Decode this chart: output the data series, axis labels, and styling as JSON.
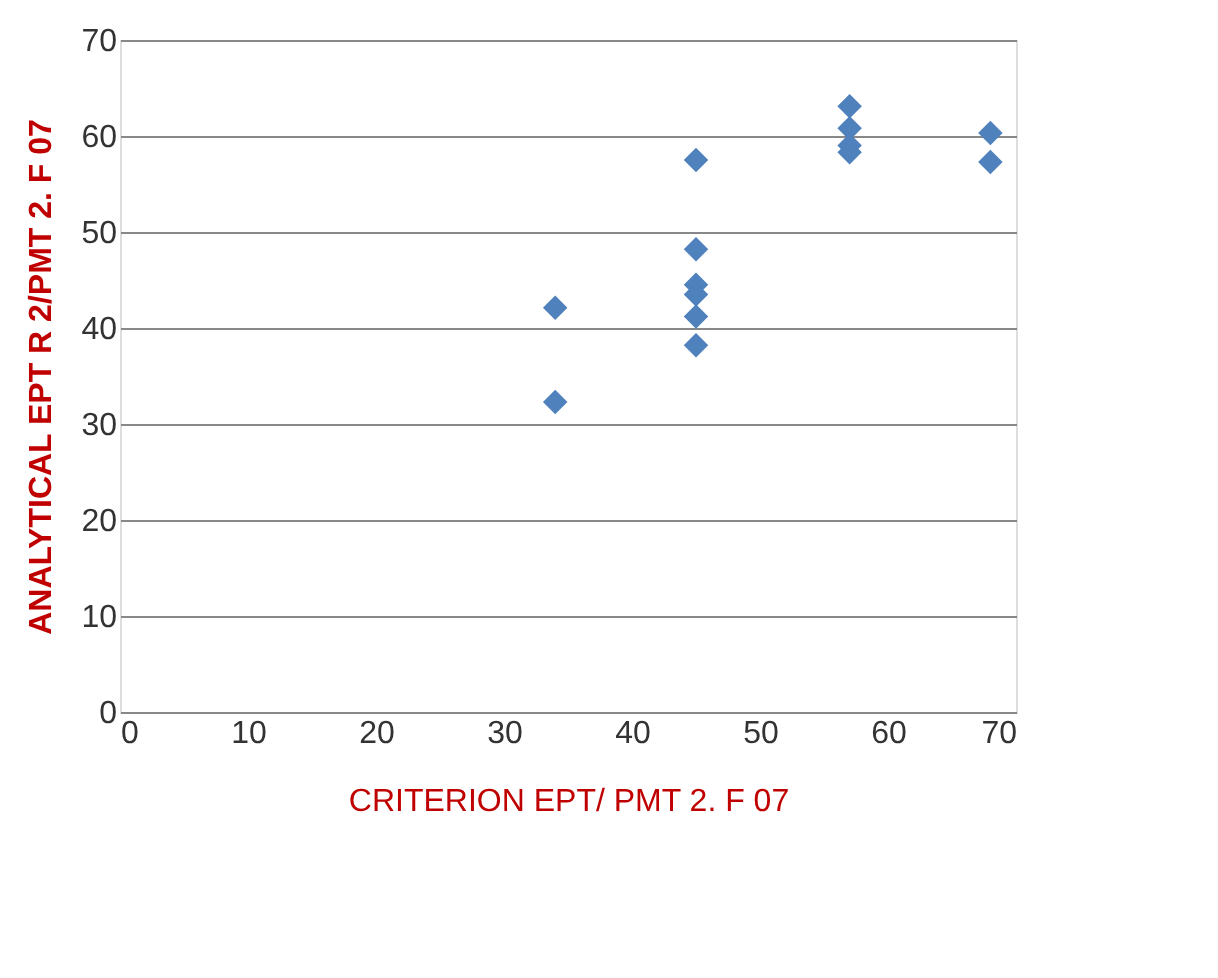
{
  "chart_data": {
    "type": "scatter",
    "xlabel": "CRITERION EPT/ PMT 2. F 07",
    "ylabel": "ANALYTICAL EPT R 2/PMT 2. F 07",
    "series": [
      {
        "color": "#4f81bd",
        "x": [
          34,
          34,
          45,
          45,
          45,
          45,
          45,
          45,
          57,
          57,
          57,
          57,
          68,
          68
        ],
        "values": [
          42.1,
          32.3,
          57.5,
          48.2,
          44.5,
          43.5,
          41.2,
          38.2,
          63.1,
          60.8,
          59,
          58.3,
          60.3,
          57.3
        ]
      }
    ],
    "xlim": [
      0,
      70
    ],
    "xticks": [
      0,
      10,
      20,
      30,
      40,
      50,
      60,
      70
    ],
    "ylim": [
      0,
      70
    ],
    "yticks": [
      0,
      10,
      20,
      30,
      40,
      50,
      60,
      70
    ],
    "grid": "y",
    "marker": "diamond",
    "legend": false
  }
}
